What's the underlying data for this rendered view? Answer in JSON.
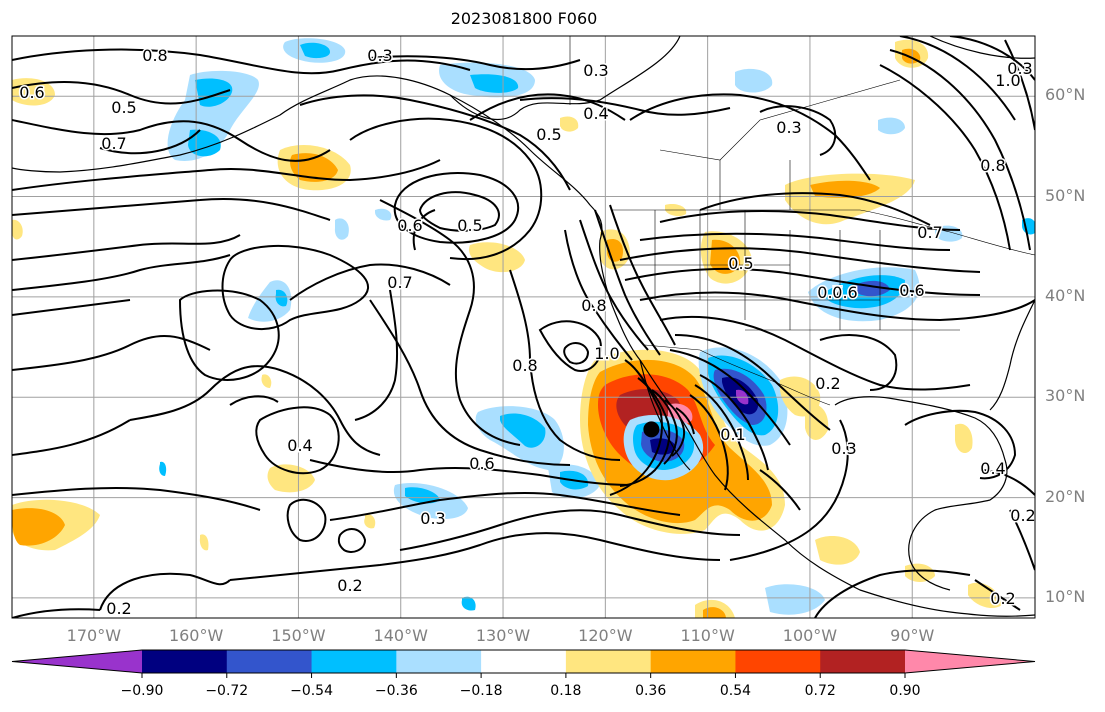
{
  "figure": {
    "title": "2023081800 F060"
  },
  "axes": {
    "lon_labels": [
      "170°W",
      "160°W",
      "150°W",
      "140°W",
      "130°W",
      "120°W",
      "110°W",
      "100°W",
      "90°W"
    ],
    "lat_labels": [
      "60°N",
      "50°N",
      "40°N",
      "30°N",
      "20°N",
      "10°N"
    ],
    "lon_range": [
      -178,
      -78
    ],
    "lat_range": [
      8,
      66
    ],
    "grid": true
  },
  "contour_labels": [
    "0.8",
    "0.3",
    "0.6",
    "0.5",
    "0.7",
    "0.3",
    "0.4",
    "0.3",
    "0.5",
    "0.5",
    "0.6",
    "0.7",
    "0.5",
    "0.7",
    "0.6",
    "0.8",
    "1.0",
    "0.8",
    "0.4",
    "0.6",
    "0.3",
    "0.2",
    "0.2",
    "0.3",
    "0.1",
    "0.6",
    "0.2",
    "0.3",
    "0.4",
    "0.2",
    "0.2",
    "0.8",
    "1.0",
    "0.7"
  ],
  "marker": {
    "name": "storm-center",
    "lon": -115.5,
    "lat": 26.8
  },
  "colorbar": {
    "tick_labels": [
      "−0.90",
      "−0.72",
      "−0.54",
      "−0.36",
      "−0.18",
      "0.18",
      "0.36",
      "0.54",
      "0.72",
      "0.90"
    ],
    "levels": [
      -0.9,
      -0.72,
      -0.54,
      -0.36,
      -0.18,
      0.18,
      0.36,
      0.54,
      0.72,
      0.9
    ],
    "colors": [
      "#9933cc",
      "#000080",
      "#3355cc",
      "#00bfff",
      "#aadfff",
      "#ffffff",
      "#ffe680",
      "#ffa500",
      "#ff4500",
      "#b22222",
      "#ff88aa"
    ],
    "extend": "both"
  }
}
